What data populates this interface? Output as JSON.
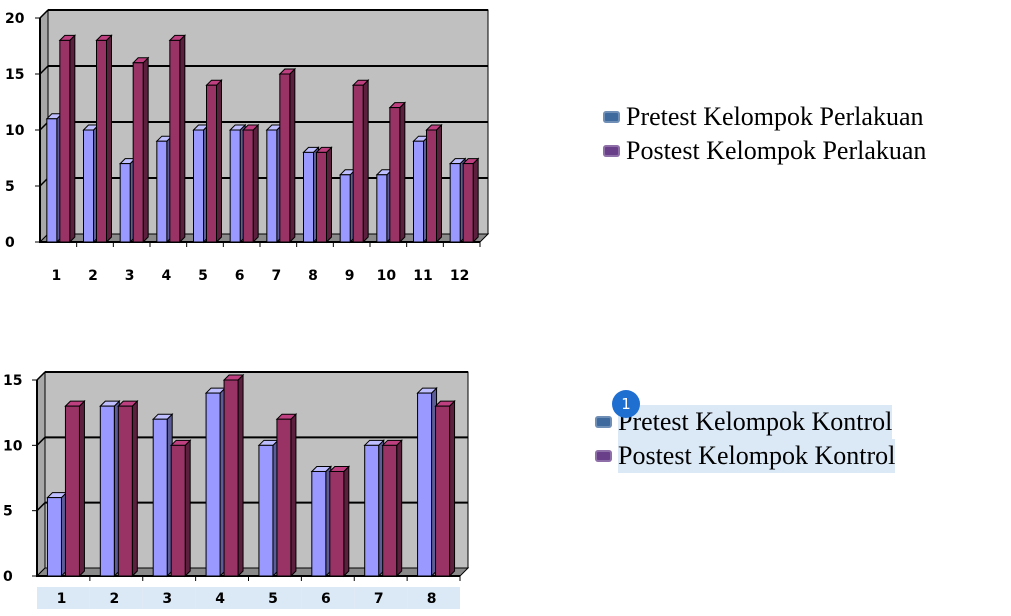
{
  "chart_data": [
    {
      "type": "bar",
      "categories": [
        "1",
        "2",
        "3",
        "4",
        "5",
        "6",
        "7",
        "8",
        "9",
        "10",
        "11",
        "12"
      ],
      "series": [
        {
          "name": "Pretest Kelompok Perlakuan",
          "values": [
            11,
            10,
            7,
            9,
            10,
            10,
            10,
            8,
            6,
            6,
            9,
            7
          ]
        },
        {
          "name": "Postest Kelompok Perlakuan",
          "values": [
            18,
            18,
            16,
            18,
            14,
            10,
            15,
            8,
            14,
            12,
            10,
            7
          ]
        }
      ],
      "yticks": [
        "0",
        "5",
        "10",
        "15",
        "20"
      ],
      "ylim": [
        0,
        20
      ],
      "grid": true,
      "legend_position": "right"
    },
    {
      "type": "bar",
      "categories": [
        "1",
        "2",
        "3",
        "4",
        "5",
        "6",
        "7",
        "8"
      ],
      "series": [
        {
          "name": "Pretest Kelompok Kontrol",
          "values": [
            6,
            13,
            12,
            14,
            10,
            8,
            10,
            14
          ]
        },
        {
          "name": "Postest Kelompok Kontrol",
          "values": [
            13,
            13,
            10,
            15,
            12,
            8,
            10,
            13
          ]
        }
      ],
      "yticks": [
        "0",
        "5",
        "10",
        "15"
      ],
      "ylim": [
        0,
        15
      ],
      "grid": true,
      "legend_position": "right"
    }
  ],
  "colors": {
    "pretest": "#9999ff",
    "postest": "#993366",
    "plot_background": "#c0c0c0",
    "legend_swatch_pretest": "#3f6a9e",
    "legend_swatch_postest": "#6a3f8a",
    "highlight": "#dbe8f6"
  },
  "legend1": {
    "item1": "Pretest Kelompok Perlakuan",
    "item2": "Postest Kelompok Perlakuan"
  },
  "legend2": {
    "item1": "Pretest Kelompok Kontrol",
    "item2": "Postest Kelompok Kontrol"
  },
  "marker": {
    "label": "1"
  }
}
